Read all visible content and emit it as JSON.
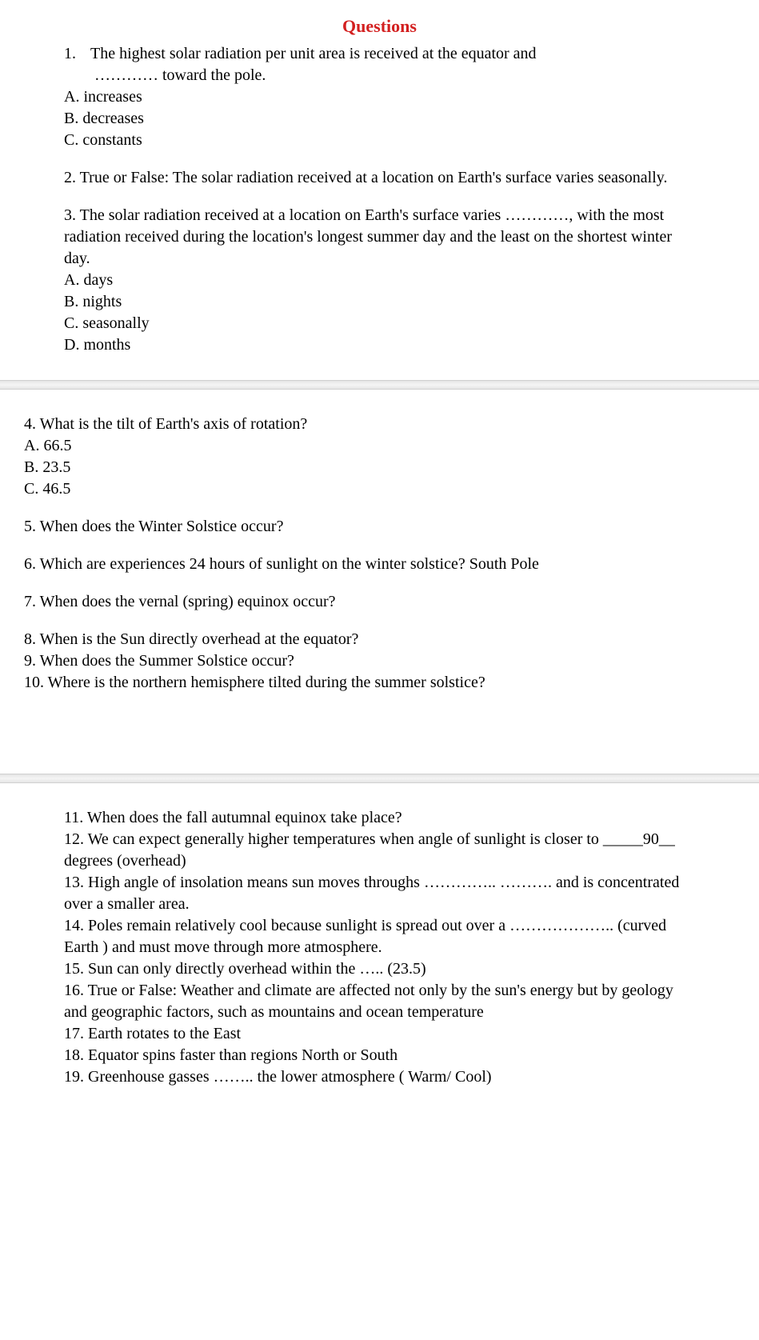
{
  "title": {
    "text": "Questions",
    "color": "#d32020"
  },
  "section1": {
    "q1": {
      "line1_num": "1.",
      "line1_text": "The highest solar radiation per unit area is received at the equator and",
      "line2": "………… toward the pole.",
      "optA": "A. increases",
      "optB": "B. decreases",
      "optC": "C. constants"
    },
    "q2": {
      "text": "2. True or False: The solar radiation received at a location on Earth's surface varies seasonally."
    },
    "q3": {
      "line1": "3. The solar radiation received at a location on Earth's surface varies …………, with the most radiation received during the location's longest summer day and the least on the shortest winter day.",
      "optA": "A. days",
      "optB": "B. nights",
      "optC": "C. seasonally",
      "optD": "D. months"
    }
  },
  "section2": {
    "q4": {
      "text": "4. What is the tilt of Earth's axis of rotation?",
      "optA": "A. 66.5",
      "optB": "B. 23.5",
      "optC": "C. 46.5"
    },
    "q5": "5. When does the Winter Solstice occur?",
    "q6": "6. Which are experiences 24 hours of sunlight on the winter solstice? South Pole",
    "q7": "7. When does the vernal (spring) equinox occur?",
    "q8": "8. When is the Sun directly overhead at the equator?",
    "q9": "9. When does the Summer Solstice occur?",
    "q10": "10. Where is the northern hemisphere tilted during the summer solstice?"
  },
  "section3": {
    "q11": "11. When does the fall autumnal equinox take place?",
    "q12": "12. We can expect generally higher temperatures when angle of sunlight is closer to _____90__ degrees (overhead)",
    "q13": "13. High angle of insolation means sun moves throughs ………….. ………. and is concentrated over a smaller area.",
    "q14": "14. Poles remain relatively cool because sunlight is spread out over a ……………….. (curved Earth ) and must move through more atmosphere.",
    "q15": "15. Sun can only directly overhead within the ….. (23.5)",
    "q16": "16. True or False: Weather and climate are affected not only by the sun's energy but by geology and geographic factors, such as mountains and ocean temperature",
    "q17": "17. Earth rotates to the East",
    "q18": "18. Equator spins faster than regions North or South",
    "q19": "19. Greenhouse gasses …….. the lower atmosphere ( Warm/ Cool)"
  }
}
